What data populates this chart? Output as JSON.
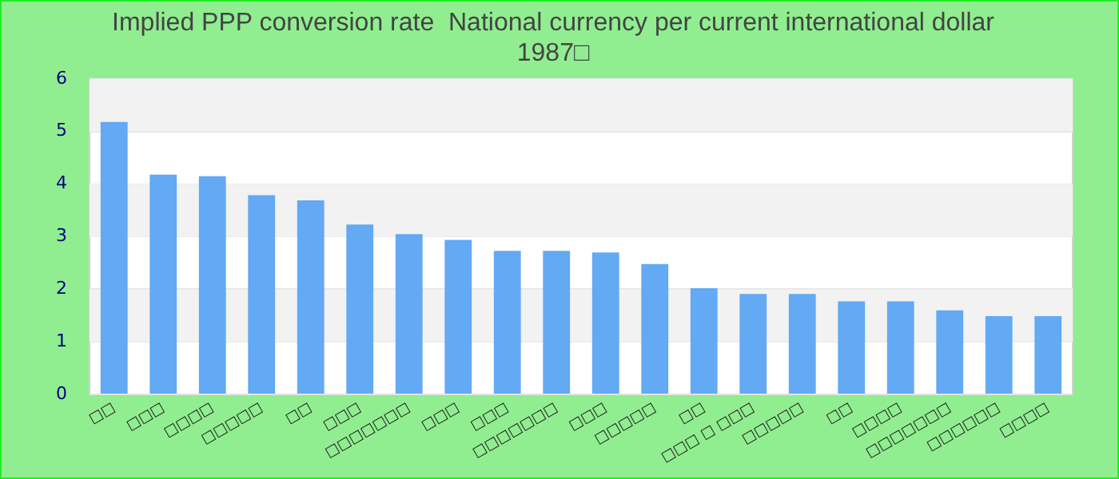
{
  "chart_data": {
    "type": "bar",
    "title": "Implied PPP conversion rate  National currency per current international dollar\n1987□",
    "categories": [
      "□□",
      "□□□",
      "□□□□",
      "□□□□□",
      "□□",
      "□□□",
      "□□□□□□□",
      "□□□",
      "□□□",
      "□□□□□□□",
      "□□□",
      "□□□□□",
      "□□",
      "□□□ □ □□□",
      "□□□□□",
      "□□",
      "□□□□",
      "□□□□□□□",
      "□□□□□□",
      "□□□□"
    ],
    "values": [
      5.18,
      4.18,
      4.15,
      3.79,
      3.69,
      3.23,
      3.05,
      2.94,
      2.73,
      2.73,
      2.7,
      2.48,
      2.02,
      1.91,
      1.91,
      1.77,
      1.77,
      1.6,
      1.49,
      1.49
    ],
    "color": "#63a9f4",
    "ylim": [
      0,
      6
    ],
    "yticks": [
      0,
      1,
      2,
      3,
      4,
      5,
      6
    ],
    "grid": "y"
  }
}
